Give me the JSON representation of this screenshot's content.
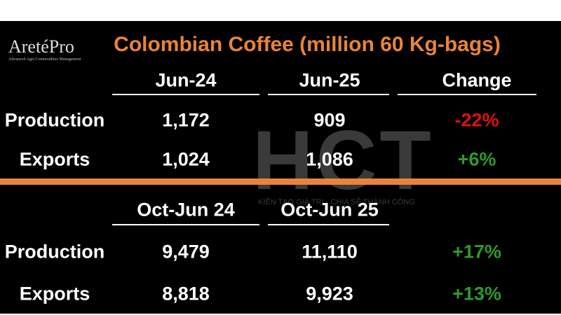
{
  "logo": {
    "name": "AretéPro",
    "tagline": "Advanced Agri-Commodities Management"
  },
  "title": "Colombian Coffee (million 60 Kg-bags)",
  "watermark": {
    "mark": "HCT",
    "slogan": "KIẾN TẠO GIÁ TRỊ - CHIA SẺ THÀNH CÔNG"
  },
  "table1": {
    "headers": [
      "Jun-24",
      "Jun-25",
      "Change"
    ],
    "rows": [
      [
        "Production",
        "1,172",
        "909",
        "-22%"
      ],
      [
        "Exports",
        "1,024",
        "1,086",
        "+6%"
      ]
    ]
  },
  "table2": {
    "headers": [
      "Oct-Jun 24",
      "Oct-Jun 25"
    ],
    "rows": [
      [
        "Production",
        "9,479",
        "11,110",
        "+17%"
      ],
      [
        "Exports",
        "8,818",
        "9,923",
        "+13%"
      ]
    ]
  }
}
